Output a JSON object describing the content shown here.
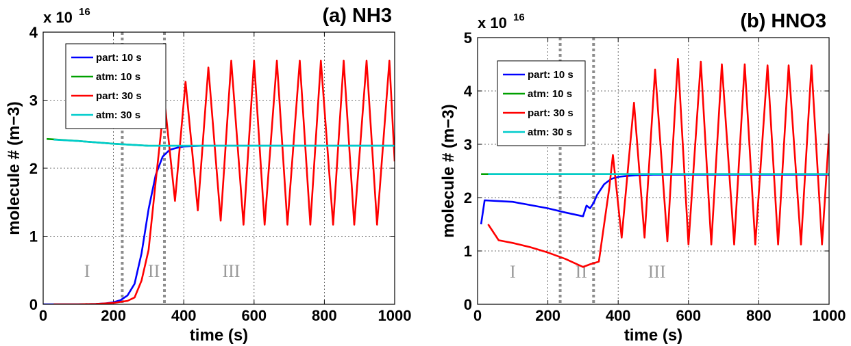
{
  "chart_data": [
    {
      "type": "line",
      "title": "(a) NH3",
      "xlabel": "time (s)",
      "ylabel": "molecule # (m−3)",
      "y_multiplier": {
        "base": "x 10",
        "exponent": "16"
      },
      "xlim": [
        0,
        1000
      ],
      "ylim": [
        0,
        4
      ],
      "xticks": [
        0,
        200,
        400,
        600,
        800,
        1000
      ],
      "yticks": [
        0,
        1,
        2,
        3,
        4
      ],
      "grid": true,
      "legend_position": "top-left",
      "vertical_lines": [
        225,
        345
      ],
      "region_labels": [
        {
          "text": "I",
          "x": 125,
          "y": 0.4
        },
        {
          "text": "II",
          "x": 315,
          "y": 0.4
        },
        {
          "text": "III",
          "x": 535,
          "y": 0.4
        }
      ],
      "series": [
        {
          "name": "part: 10 s",
          "color": "#0000ff",
          "x": [
            0,
            100,
            150,
            180,
            200,
            220,
            240,
            260,
            280,
            300,
            320,
            340,
            360,
            380,
            400,
            450,
            500,
            600,
            700,
            800,
            900,
            1000
          ],
          "y": [
            0.0,
            0.0,
            0.005,
            0.015,
            0.03,
            0.06,
            0.13,
            0.3,
            0.75,
            1.4,
            1.9,
            2.17,
            2.27,
            2.3,
            2.32,
            2.33,
            2.33,
            2.33,
            2.33,
            2.33,
            2.33,
            2.33
          ]
        },
        {
          "name": "atm: 10 s",
          "color": "#00a000",
          "x": [
            10,
            100,
            200,
            300,
            400,
            600,
            800,
            1000
          ],
          "y": [
            2.43,
            2.4,
            2.36,
            2.33,
            2.33,
            2.33,
            2.33,
            2.33
          ]
        },
        {
          "name": "part: 30 s",
          "color": "#ff0000",
          "x": [
            30,
            100,
            150,
            200,
            240,
            260,
            280,
            300,
            320,
            345,
            375,
            405,
            440,
            470,
            505,
            535,
            570,
            600,
            630,
            665,
            695,
            730,
            760,
            790,
            825,
            855,
            885,
            920,
            950,
            985,
            1000
          ],
          "y": [
            0.0,
            0.0,
            0.005,
            0.02,
            0.05,
            0.1,
            0.35,
            0.8,
            1.8,
            3.0,
            1.52,
            3.27,
            1.38,
            3.48,
            1.23,
            3.58,
            1.17,
            3.58,
            1.17,
            3.58,
            1.17,
            3.58,
            1.17,
            3.58,
            1.17,
            3.58,
            1.17,
            3.58,
            1.17,
            3.58,
            2.1
          ]
        },
        {
          "name": "atm: 30 s",
          "color": "#00cccc",
          "x": [
            30,
            100,
            200,
            300,
            400,
            600,
            800,
            1000
          ],
          "y": [
            2.42,
            2.4,
            2.36,
            2.33,
            2.33,
            2.33,
            2.33,
            2.33
          ]
        }
      ]
    },
    {
      "type": "line",
      "title": "(b) HNO3",
      "xlabel": "time (s)",
      "ylabel": "molecule # (m−3)",
      "y_multiplier": {
        "base": "x 10",
        "exponent": "16"
      },
      "xlim": [
        0,
        1000
      ],
      "ylim": [
        0,
        5
      ],
      "xticks": [
        0,
        200,
        400,
        600,
        800,
        1000
      ],
      "yticks": [
        0,
        1,
        2,
        3,
        4,
        5
      ],
      "grid": true,
      "legend_position": "top-left",
      "vertical_lines": [
        235,
        330
      ],
      "region_labels": [
        {
          "text": "I",
          "x": 100,
          "y": 0.5
        },
        {
          "text": "II",
          "x": 295,
          "y": 0.5
        },
        {
          "text": "III",
          "x": 510,
          "y": 0.5
        }
      ],
      "series": [
        {
          "name": "part: 10 s",
          "color": "#0000ff",
          "x": [
            10,
            20,
            100,
            200,
            250,
            300,
            310,
            320,
            330,
            340,
            360,
            380,
            400,
            450,
            500,
            600,
            700,
            800,
            900,
            1000
          ],
          "y": [
            1.5,
            1.95,
            1.92,
            1.8,
            1.72,
            1.65,
            1.85,
            1.8,
            1.9,
            2.05,
            2.25,
            2.35,
            2.39,
            2.42,
            2.43,
            2.43,
            2.43,
            2.43,
            2.43,
            2.43
          ]
        },
        {
          "name": "atm: 10 s",
          "color": "#00a000",
          "x": [
            10,
            100,
            200,
            300,
            400,
            600,
            800,
            1000
          ],
          "y": [
            2.44,
            2.44,
            2.44,
            2.44,
            2.44,
            2.44,
            2.44,
            2.44
          ]
        },
        {
          "name": "part: 30 s",
          "color": "#ff0000",
          "x": [
            30,
            60,
            100,
            150,
            200,
            250,
            300,
            320,
            345,
            375,
            385,
            410,
            445,
            475,
            505,
            540,
            570,
            600,
            635,
            665,
            695,
            730,
            760,
            790,
            825,
            855,
            885,
            920,
            950,
            980,
            1000
          ],
          "y": [
            1.5,
            1.2,
            1.15,
            1.07,
            0.97,
            0.85,
            0.7,
            0.75,
            0.8,
            2.2,
            2.8,
            1.25,
            3.78,
            1.25,
            4.4,
            1.18,
            4.6,
            1.12,
            4.55,
            1.12,
            4.5,
            1.12,
            4.5,
            1.12,
            4.48,
            1.12,
            4.48,
            1.12,
            4.48,
            1.12,
            3.2
          ]
        },
        {
          "name": "atm: 30 s",
          "color": "#00cccc",
          "x": [
            30,
            100,
            200,
            300,
            400,
            600,
            800,
            1000
          ],
          "y": [
            2.44,
            2.44,
            2.44,
            2.44,
            2.44,
            2.44,
            2.44,
            2.44
          ]
        }
      ]
    }
  ]
}
